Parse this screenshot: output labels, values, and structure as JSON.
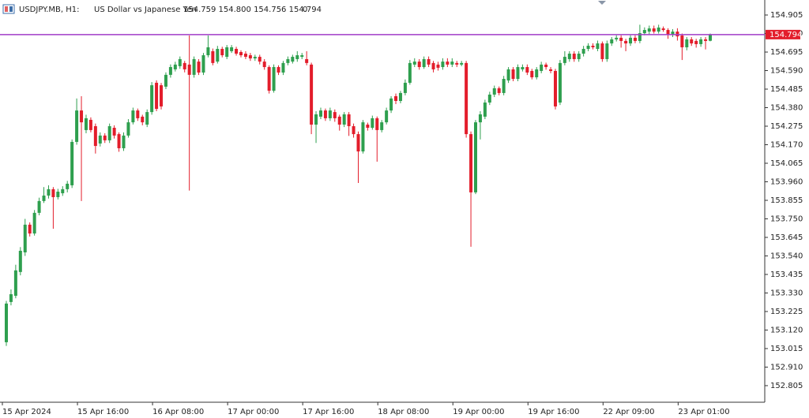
{
  "chart_data": {
    "type": "candlestick",
    "symbol": "USDJPY.MB, H1:",
    "description": "US Dollar vs Japanese Yen",
    "header_ohlc": "154.759 154.800 154.756 154.794",
    "header_volume": "0",
    "last_price": 154.794,
    "last_price_color": "#e31d2b",
    "price_line_color": "#a03cc8",
    "up_color": "#2e9f4e",
    "down_color": "#e31d2b",
    "ylim": [
      152.711,
      154.99
    ],
    "yticks": [
      154.905,
      {
        "value": 154.8,
        "label": "154.800"
      },
      154.695,
      {
        "value": 154.59,
        "label": "154.590"
      },
      154.485,
      {
        "value": 154.38,
        "label": "154.380"
      },
      154.275,
      {
        "value": 154.17,
        "label": "154.170"
      },
      154.065,
      {
        "value": 153.96,
        "label": "153.960"
      },
      153.855,
      {
        "value": 153.75,
        "label": "153.750"
      },
      153.645,
      {
        "value": 153.54,
        "label": "153.540"
      },
      153.435,
      {
        "value": 153.33,
        "label": "153.330"
      },
      153.225,
      {
        "value": 153.12,
        "label": "153.120"
      },
      153.015,
      {
        "value": 152.91,
        "label": "152.910"
      },
      152.805
    ],
    "categories": [
      "15 Apr 2024",
      null,
      null,
      null,
      null,
      null,
      null,
      null,
      null,
      null,
      null,
      null,
      null,
      null,
      null,
      null,
      "15 Apr 16:00",
      null,
      null,
      null,
      null,
      null,
      null,
      null,
      null,
      null,
      null,
      null,
      null,
      null,
      null,
      null,
      "16 Apr 08:00",
      null,
      null,
      null,
      null,
      null,
      null,
      null,
      null,
      null,
      null,
      null,
      null,
      null,
      null,
      null,
      "17 Apr 00:00",
      null,
      null,
      null,
      null,
      null,
      null,
      null,
      null,
      null,
      null,
      null,
      null,
      null,
      null,
      null,
      "17 Apr 16:00",
      null,
      null,
      null,
      null,
      null,
      null,
      null,
      null,
      null,
      null,
      null,
      null,
      null,
      null,
      null,
      "18 Apr 08:00",
      null,
      null,
      null,
      null,
      null,
      null,
      null,
      null,
      null,
      null,
      null,
      null,
      null,
      null,
      null,
      "19 Apr 00:00",
      null,
      null,
      null,
      null,
      null,
      null,
      null,
      null,
      null,
      null,
      null,
      null,
      null,
      null,
      null,
      "19 Apr 16:00",
      null,
      null,
      null,
      null,
      null,
      null,
      null,
      null,
      null,
      null,
      null,
      null,
      null,
      null,
      null,
      "22 Apr 09:00",
      null,
      null,
      null,
      null,
      null,
      null,
      null,
      null,
      null,
      null,
      null,
      null,
      null,
      null,
      null,
      "23 Apr 01:00",
      null,
      null,
      null,
      null,
      null,
      null
    ],
    "open": [
      153.051,
      153.279,
      153.314,
      153.449,
      153.56,
      153.717,
      153.667,
      153.784,
      153.851,
      153.882,
      153.918,
      153.873,
      153.895,
      153.918,
      153.94,
      154.186,
      154.364,
      154.253,
      154.311,
      154.275,
      154.177,
      154.222,
      154.195,
      154.266,
      154.23,
      154.15,
      154.222,
      154.297,
      154.364,
      154.329,
      154.284,
      154.355,
      154.521,
      154.507,
      154.499,
      154.566,
      154.597,
      154.615,
      154.633,
      154.624,
      154.566,
      154.641,
      154.579,
      154.677,
      154.7,
      154.641,
      154.713,
      154.668,
      154.7,
      154.713,
      154.695,
      154.686,
      154.677,
      154.659,
      154.668,
      154.641,
      154.61,
      154.476,
      154.61,
      154.579,
      154.633,
      154.641,
      154.655,
      154.668,
      154.655,
      154.624,
      154.284,
      154.329,
      154.364,
      154.32,
      154.355,
      154.329,
      154.284,
      154.342,
      154.275,
      154.23,
      154.132,
      154.284,
      154.266,
      154.32,
      154.253,
      154.297,
      154.364,
      154.445,
      154.418,
      154.463,
      154.521,
      154.624,
      154.641,
      154.61,
      154.655,
      154.633,
      154.624,
      154.61,
      154.641,
      154.624,
      154.633,
      154.624,
      154.633,
      154.23,
      153.9,
      154.297,
      154.329,
      154.409,
      154.454,
      154.49,
      154.463,
      154.534,
      154.597,
      154.543,
      154.597,
      154.61,
      154.588,
      154.552,
      154.588,
      154.624,
      154.597,
      154.588,
      154.409,
      154.633,
      154.655,
      154.686,
      154.655,
      154.686,
      154.713,
      154.731,
      154.713,
      154.744,
      154.655,
      154.744,
      154.767,
      154.776,
      154.758,
      154.744,
      154.776,
      154.758,
      154.802,
      154.811,
      154.829,
      154.811,
      154.829,
      154.82,
      154.793,
      154.811,
      154.789,
      154.722,
      154.767,
      154.758,
      154.74,
      154.767,
      154.759
    ],
    "high": [
      153.285,
      153.35,
      153.49,
      153.59,
      153.75,
      153.73,
      153.8,
      153.87,
      153.93,
      153.94,
      153.93,
      153.92,
      153.935,
      153.965,
      154.2,
      154.432,
      154.445,
      154.34,
      154.325,
      154.29,
      154.24,
      154.235,
      154.29,
      154.28,
      154.24,
      154.24,
      154.315,
      154.38,
      154.375,
      154.34,
      154.37,
      154.525,
      154.535,
      154.52,
      154.58,
      154.625,
      154.64,
      154.67,
      154.645,
      154.789,
      154.67,
      154.655,
      154.69,
      154.789,
      154.715,
      154.73,
      154.725,
      154.735,
      154.735,
      154.725,
      154.705,
      154.7,
      154.69,
      154.68,
      154.68,
      154.655,
      154.62,
      154.625,
      154.62,
      154.645,
      154.67,
      154.68,
      154.7,
      154.69,
      154.7,
      154.635,
      154.36,
      154.38,
      154.375,
      154.38,
      154.37,
      154.34,
      154.355,
      154.355,
      154.29,
      154.245,
      154.31,
      154.295,
      154.335,
      154.33,
      154.31,
      154.38,
      154.445,
      154.46,
      154.475,
      154.54,
      154.65,
      154.66,
      154.655,
      154.67,
      154.67,
      154.645,
      154.64,
      154.66,
      154.66,
      154.66,
      154.645,
      154.645,
      154.645,
      154.245,
      154.31,
      154.36,
      154.425,
      154.47,
      154.505,
      154.5,
      154.56,
      154.61,
      154.61,
      154.625,
      154.625,
      154.625,
      154.6,
      154.61,
      154.64,
      154.635,
      154.61,
      154.6,
      154.65,
      154.7,
      154.7,
      154.7,
      154.7,
      154.73,
      154.745,
      154.745,
      154.76,
      154.755,
      154.76,
      154.78,
      154.79,
      154.79,
      154.77,
      154.79,
      154.79,
      154.85,
      154.835,
      154.845,
      154.845,
      154.85,
      154.84,
      154.83,
      154.825,
      154.83,
      154.8,
      154.78,
      154.78,
      154.77,
      154.78,
      154.78,
      154.8
    ],
    "low": [
      153.03,
      153.26,
      153.3,
      153.43,
      153.54,
      153.65,
      153.655,
      153.77,
      153.84,
      153.865,
      153.694,
      153.86,
      153.88,
      153.9,
      153.925,
      154.17,
      153.851,
      154.235,
      154.24,
      154.12,
      154.16,
      154.18,
      154.18,
      154.205,
      154.13,
      154.135,
      154.21,
      154.285,
      154.305,
      154.28,
      154.27,
      154.34,
      154.36,
      154.37,
      154.485,
      154.55,
      154.585,
      154.6,
      154.58,
      153.91,
      154.55,
      154.565,
      154.565,
      154.665,
      154.62,
      154.63,
      154.665,
      154.655,
      154.69,
      154.675,
      154.665,
      154.655,
      154.645,
      154.645,
      154.625,
      154.595,
      154.46,
      154.465,
      154.565,
      154.565,
      154.62,
      154.63,
      154.64,
      154.655,
      154.62,
      154.23,
      154.18,
      154.315,
      154.305,
      154.305,
      154.3,
      154.25,
      154.27,
      154.22,
      154.21,
      153.953,
      154.12,
      154.25,
      154.255,
      154.074,
      154.24,
      154.285,
      154.35,
      154.4,
      154.405,
      154.45,
      154.51,
      154.61,
      154.595,
      154.6,
      154.61,
      154.58,
      154.59,
      154.595,
      154.61,
      154.61,
      154.61,
      154.615,
      154.21,
      153.592,
      153.89,
      154.2,
      154.315,
      154.395,
      154.44,
      154.45,
      154.45,
      154.52,
      154.53,
      154.53,
      154.585,
      154.565,
      154.54,
      154.54,
      154.575,
      154.595,
      154.575,
      154.37,
      154.395,
      154.62,
      154.64,
      154.64,
      154.64,
      154.67,
      154.7,
      154.71,
      154.7,
      154.64,
      154.64,
      154.73,
      154.755,
      154.72,
      154.7,
      154.73,
      154.745,
      154.745,
      154.79,
      154.795,
      154.8,
      154.8,
      154.81,
      154.77,
      154.78,
      154.76,
      154.65,
      154.705,
      154.73,
      154.72,
      154.725,
      154.71,
      154.756
    ],
    "close": [
      153.27,
      153.323,
      153.458,
      153.569,
      153.717,
      153.667,
      153.784,
      153.851,
      153.882,
      153.918,
      153.873,
      153.904,
      153.918,
      153.949,
      154.186,
      154.364,
      154.297,
      154.32,
      154.253,
      154.163,
      154.222,
      154.195,
      154.275,
      154.222,
      154.15,
      154.222,
      154.297,
      154.364,
      154.32,
      154.297,
      154.355,
      154.507,
      154.373,
      154.387,
      154.566,
      154.61,
      154.624,
      154.655,
      154.597,
      154.566,
      154.655,
      154.579,
      154.677,
      154.722,
      154.633,
      154.713,
      154.677,
      154.722,
      154.722,
      154.686,
      154.677,
      154.668,
      154.659,
      154.668,
      154.641,
      154.61,
      154.476,
      154.61,
      154.579,
      154.633,
      154.655,
      154.668,
      154.677,
      154.677,
      154.633,
      154.284,
      154.342,
      154.364,
      154.32,
      154.364,
      154.32,
      154.284,
      154.342,
      154.275,
      154.23,
      154.132,
      154.297,
      154.266,
      154.32,
      154.253,
      154.297,
      154.364,
      154.432,
      154.418,
      154.463,
      154.521,
      154.633,
      154.641,
      154.61,
      154.655,
      154.624,
      154.597,
      154.606,
      154.641,
      154.624,
      154.641,
      154.624,
      154.633,
      154.23,
      153.9,
      154.297,
      154.342,
      154.409,
      154.454,
      154.49,
      154.463,
      154.543,
      154.597,
      154.543,
      154.61,
      154.61,
      154.579,
      154.552,
      154.597,
      154.624,
      154.61,
      154.588,
      154.387,
      154.633,
      154.668,
      154.686,
      154.655,
      154.686,
      154.713,
      154.731,
      154.722,
      154.744,
      154.655,
      154.744,
      154.767,
      154.776,
      154.758,
      154.744,
      154.776,
      154.758,
      154.802,
      154.82,
      154.829,
      154.811,
      154.834,
      154.82,
      154.793,
      154.811,
      154.784,
      154.722,
      154.767,
      154.744,
      154.74,
      154.767,
      154.758,
      154.794
    ]
  }
}
